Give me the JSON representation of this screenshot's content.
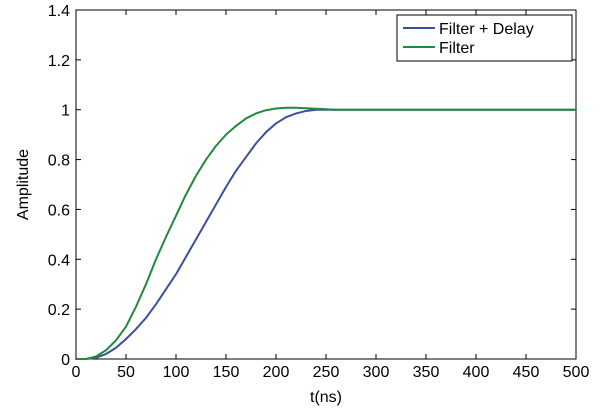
{
  "chart_data": {
    "type": "line",
    "title": "",
    "xlabel": "t(ns)",
    "ylabel": "Amplitude",
    "xlim": [
      0,
      500
    ],
    "ylim": [
      0,
      1.4
    ],
    "xticks": [
      0,
      50,
      100,
      150,
      200,
      250,
      300,
      350,
      400,
      450,
      500
    ],
    "yticks": [
      0,
      0.2,
      0.4,
      0.6,
      0.8,
      1,
      1.2,
      1.4
    ],
    "xtick_labels": [
      "0",
      "50",
      "100",
      "150",
      "200",
      "250",
      "300",
      "350",
      "400",
      "450",
      "500"
    ],
    "ytick_labels": [
      "0",
      "0.2",
      "0.4",
      "0.6",
      "0.8",
      "1",
      "1.2",
      "1.4"
    ],
    "grid": false,
    "legend": {
      "position": "top-right",
      "box": true
    },
    "series": [
      {
        "name": "Filter + Delay",
        "color": "#3b4fa0",
        "x": [
          0,
          10,
          20,
          30,
          40,
          50,
          60,
          70,
          80,
          90,
          100,
          110,
          120,
          130,
          140,
          150,
          160,
          170,
          180,
          190,
          200,
          210,
          220,
          230,
          240,
          250,
          260,
          270,
          280,
          300,
          350,
          400,
          450,
          500
        ],
        "y": [
          0,
          0,
          0.005,
          0.02,
          0.045,
          0.08,
          0.12,
          0.165,
          0.22,
          0.28,
          0.34,
          0.41,
          0.48,
          0.55,
          0.62,
          0.69,
          0.755,
          0.81,
          0.865,
          0.91,
          0.945,
          0.97,
          0.985,
          0.995,
          1.0,
          1.0,
          1.0,
          1.0,
          1.0,
          1.0,
          1.0,
          1.0,
          1.0,
          1.0
        ]
      },
      {
        "name": "Filter",
        "color": "#1f8a3c",
        "x": [
          0,
          10,
          20,
          30,
          40,
          50,
          60,
          70,
          80,
          90,
          100,
          110,
          120,
          130,
          140,
          150,
          160,
          170,
          180,
          190,
          200,
          210,
          220,
          230,
          240,
          250,
          260,
          280,
          300,
          350,
          400,
          450,
          500
        ],
        "y": [
          0,
          0,
          0.01,
          0.035,
          0.075,
          0.13,
          0.21,
          0.3,
          0.4,
          0.49,
          0.575,
          0.66,
          0.735,
          0.8,
          0.855,
          0.9,
          0.935,
          0.965,
          0.985,
          0.998,
          1.005,
          1.008,
          1.008,
          1.006,
          1.004,
          1.002,
          1.0,
          1.0,
          1.0,
          1.0,
          1.0,
          1.0,
          1.0
        ]
      }
    ]
  }
}
